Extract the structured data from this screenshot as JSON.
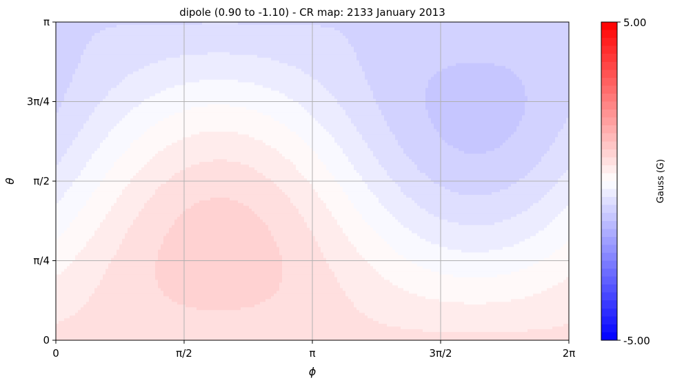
{
  "chart_data": {
    "type": "heatmap",
    "title": "dipole (0.90 to -1.10) - CR map: 2133 January 2013",
    "xlabel": "ϕ",
    "ylabel": "θ",
    "xlim": [
      0,
      6.2832
    ],
    "ylim": [
      0,
      3.1416
    ],
    "x_ticks": [
      {
        "value": 0,
        "label": "0"
      },
      {
        "value": 1.5708,
        "label": "π/2"
      },
      {
        "value": 3.1416,
        "label": "π"
      },
      {
        "value": 4.7124,
        "label": "3π/2"
      },
      {
        "value": 6.2832,
        "label": "2π"
      }
    ],
    "y_ticks": [
      {
        "value": 0,
        "label": "0"
      },
      {
        "value": 0.7854,
        "label": "π/4"
      },
      {
        "value": 1.5708,
        "label": "π/2"
      },
      {
        "value": 2.3562,
        "label": "3π/4"
      },
      {
        "value": 3.1416,
        "label": "π"
      }
    ],
    "grid": true,
    "colormap": "bwr",
    "color_range": [
      -5.0,
      5.0
    ],
    "colorbar": {
      "label": "Gauss (G)",
      "max_label": "5.00",
      "min_label": "-5.00",
      "levels": 40
    },
    "field": {
      "description": "tilted dipole field shown as filled contours",
      "peak_max": {
        "phi": 2.0,
        "theta": 0.85,
        "value": 0.9
      },
      "peak_min": {
        "phi": 5.25,
        "theta": 2.3,
        "value": -1.1
      },
      "colors": {
        "low": "#0000ff",
        "mid": "#ffffff",
        "high": "#ff0000"
      }
    }
  }
}
